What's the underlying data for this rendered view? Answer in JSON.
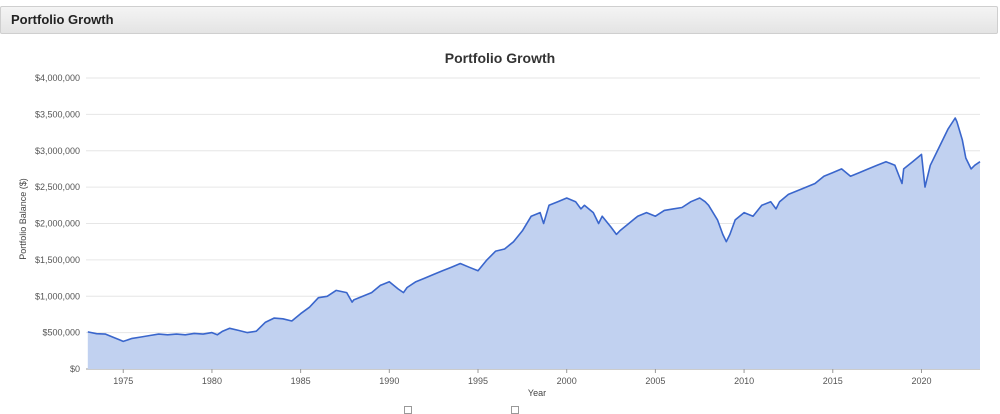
{
  "panel": {
    "title": "Portfolio Growth"
  },
  "colors": {
    "line": "#3a66cc",
    "fill": "#c1d1f0",
    "grid": "#e6e6e6",
    "header_bg": "#e8e8e8"
  },
  "chart_data": {
    "type": "area",
    "title": "Portfolio Growth",
    "xlabel": "Year",
    "ylabel": "Portfolio Balance ($)",
    "xlim": [
      1972.9,
      2023.3
    ],
    "ylim": [
      0,
      4000000
    ],
    "x_ticks": [
      1975,
      1980,
      1985,
      1990,
      1995,
      2000,
      2005,
      2010,
      2015,
      2020
    ],
    "y_ticks": [
      {
        "value": 0,
        "label": "$0"
      },
      {
        "value": 500000,
        "label": "$500,000"
      },
      {
        "value": 1000000,
        "label": "$1,000,000"
      },
      {
        "value": 1500000,
        "label": "$1,500,000"
      },
      {
        "value": 2000000,
        "label": "$2,000,000"
      },
      {
        "value": 2500000,
        "label": "$2,500,000"
      },
      {
        "value": 3000000,
        "label": "$3,000,000"
      },
      {
        "value": 3500000,
        "label": "$3,500,000"
      },
      {
        "value": 4000000,
        "label": "$4,000,000"
      }
    ],
    "grid": true,
    "series": [
      {
        "x": [
          1973.0,
          1973.5,
          1974.0,
          1974.5,
          1974.8,
          1975.0,
          1975.5,
          1976.0,
          1976.5,
          1977.0,
          1977.5,
          1978.0,
          1978.5,
          1979.0,
          1979.5,
          1980.0,
          1980.3,
          1980.6,
          1981.0,
          1981.5,
          1982.0,
          1982.5,
          1983.0,
          1983.5,
          1984.0,
          1984.5,
          1985.0,
          1985.5,
          1986.0,
          1986.5,
          1987.0,
          1987.6,
          1987.9,
          1988.0,
          1988.5,
          1989.0,
          1989.5,
          1990.0,
          1990.5,
          1990.8,
          1991.0,
          1991.5,
          1992.0,
          1992.5,
          1993.0,
          1993.5,
          1994.0,
          1994.5,
          1995.0,
          1995.5,
          1996.0,
          1996.5,
          1997.0,
          1997.5,
          1998.0,
          1998.5,
          1998.7,
          1999.0,
          1999.5,
          2000.0,
          2000.5,
          2000.8,
          2001.0,
          2001.5,
          2001.8,
          2002.0,
          2002.5,
          2002.8,
          2003.0,
          2003.5,
          2004.0,
          2004.5,
          2005.0,
          2005.5,
          2006.0,
          2006.5,
          2007.0,
          2007.5,
          2007.8,
          2008.0,
          2008.5,
          2008.8,
          2009.0,
          2009.2,
          2009.5,
          2010.0,
          2010.5,
          2011.0,
          2011.5,
          2011.8,
          2012.0,
          2012.5,
          2013.0,
          2013.5,
          2014.0,
          2014.5,
          2015.0,
          2015.5,
          2016.0,
          2016.5,
          2017.0,
          2017.5,
          2018.0,
          2018.5,
          2018.9,
          2019.0,
          2019.5,
          2020.0,
          2020.2,
          2020.5,
          2021.0,
          2021.5,
          2021.9,
          2022.0,
          2022.3,
          2022.5,
          2022.8,
          2023.0,
          2023.3
        ],
        "y": [
          510000,
          485000,
          480000,
          430000,
          400000,
          380000,
          420000,
          440000,
          460000,
          480000,
          470000,
          480000,
          470000,
          490000,
          480000,
          500000,
          470000,
          520000,
          560000,
          530000,
          500000,
          520000,
          640000,
          700000,
          690000,
          660000,
          760000,
          850000,
          980000,
          1000000,
          1080000,
          1050000,
          920000,
          950000,
          1000000,
          1050000,
          1150000,
          1200000,
          1100000,
          1050000,
          1120000,
          1200000,
          1250000,
          1300000,
          1350000,
          1400000,
          1450000,
          1400000,
          1350000,
          1500000,
          1620000,
          1650000,
          1750000,
          1900000,
          2100000,
          2150000,
          2000000,
          2250000,
          2300000,
          2350000,
          2300000,
          2200000,
          2250000,
          2150000,
          2000000,
          2100000,
          1950000,
          1850000,
          1900000,
          2000000,
          2100000,
          2150000,
          2100000,
          2180000,
          2200000,
          2220000,
          2300000,
          2350000,
          2300000,
          2250000,
          2050000,
          1850000,
          1750000,
          1850000,
          2050000,
          2150000,
          2100000,
          2250000,
          2300000,
          2200000,
          2300000,
          2400000,
          2450000,
          2500000,
          2550000,
          2650000,
          2700000,
          2750000,
          2650000,
          2700000,
          2750000,
          2800000,
          2850000,
          2800000,
          2550000,
          2750000,
          2850000,
          2950000,
          2500000,
          2800000,
          3050000,
          3300000,
          3450000,
          3400000,
          3150000,
          2900000,
          2750000,
          2800000,
          2850000
        ]
      }
    ]
  }
}
